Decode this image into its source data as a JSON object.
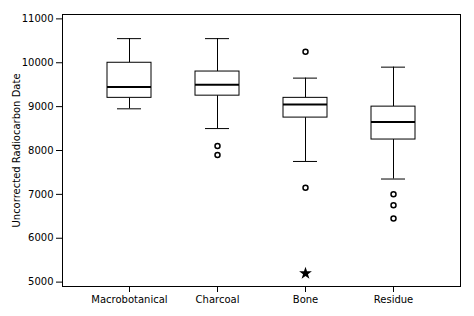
{
  "chart_data": {
    "type": "box",
    "categories": [
      "Macrobotanical",
      "Charcoal",
      "Bone",
      "Residue"
    ],
    "q1": [
      9200,
      9250,
      8750,
      8250
    ],
    "median": [
      9450,
      9500,
      9050,
      8650
    ],
    "q3": [
      10000,
      9800,
      9200,
      9000
    ],
    "whislo": [
      8950,
      8500,
      7750,
      7350
    ],
    "whishi": [
      10550,
      10550,
      9650,
      9900
    ],
    "outliers": [
      [],
      [
        7900,
        8100
      ],
      [
        10250,
        7150
      ],
      [
        7000,
        6750,
        6450
      ]
    ],
    "far_outliers": [
      [],
      [],
      [
        5200
      ],
      []
    ],
    "ylabel": "Uncorrected Radiocarbon Date",
    "ylim": [
      4900,
      11100
    ],
    "yticks": [
      5000,
      6000,
      7000,
      8000,
      9000,
      10000,
      11000
    ],
    "grid": false
  }
}
